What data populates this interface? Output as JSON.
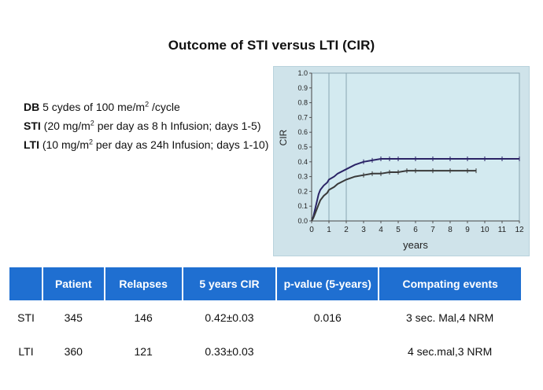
{
  "title": "Outcome of STI versus LTI (CIR)",
  "description": {
    "db": {
      "label": "DB",
      "pre": " 5 cydes of 100 me/m",
      "sup": "2",
      "post": " /cycle"
    },
    "sti": {
      "label": "STI",
      "pre": " (20 mg/m",
      "sup": "2",
      "post": " per day as 8 h Infusion; days 1-5)"
    },
    "lti": {
      "label": "LTI",
      "pre": " (10 mg/m",
      "sup": "2",
      "post": " per day as 24h Infusion; days 1-10)"
    }
  },
  "chart_data": {
    "type": "line",
    "title": "",
    "xlabel": "years",
    "ylabel": "CIR",
    "xlim": [
      0,
      12
    ],
    "ylim": [
      0,
      1.0
    ],
    "x_ticks": [
      "0",
      "1",
      "2",
      "3",
      "4",
      "5",
      "6",
      "7",
      "8",
      "9",
      "10",
      "11",
      "12"
    ],
    "y_ticks": [
      "0.0",
      "0.1",
      "0.2",
      "0.3",
      "0.4",
      "0.5",
      "0.6",
      "0.7",
      "0.8",
      "0.9",
      "1.0"
    ],
    "vertical_lines_at": [
      1,
      2
    ],
    "grid": false,
    "series": [
      {
        "color": "#2b2466",
        "x": [
          0,
          0.1,
          0.2,
          0.3,
          0.4,
          0.5,
          0.7,
          0.9,
          1.0,
          1.3,
          1.5,
          2.0,
          2.5,
          3.0,
          3.5,
          4.0,
          4.5,
          5.0,
          6.0,
          7.0,
          8.0,
          9.0,
          10.0,
          11.0,
          12.0
        ],
        "y": [
          0,
          0.03,
          0.08,
          0.13,
          0.18,
          0.21,
          0.24,
          0.26,
          0.28,
          0.3,
          0.32,
          0.35,
          0.38,
          0.4,
          0.41,
          0.42,
          0.42,
          0.42,
          0.42,
          0.42,
          0.42,
          0.42,
          0.42,
          0.42,
          0.42
        ]
      },
      {
        "color": "#3a3a3a",
        "x": [
          0,
          0.1,
          0.2,
          0.3,
          0.4,
          0.5,
          0.7,
          0.9,
          1.0,
          1.3,
          1.5,
          2.0,
          2.5,
          3.0,
          3.5,
          4.0,
          4.5,
          5.0,
          5.5,
          6.0,
          7.0,
          8.0,
          9.0,
          9.5
        ],
        "y": [
          0,
          0.02,
          0.05,
          0.08,
          0.11,
          0.14,
          0.17,
          0.19,
          0.21,
          0.23,
          0.25,
          0.28,
          0.3,
          0.31,
          0.32,
          0.32,
          0.33,
          0.33,
          0.34,
          0.34,
          0.34,
          0.34,
          0.34,
          0.34
        ]
      }
    ]
  },
  "table": {
    "headers": [
      "",
      "Patient",
      "Relapses",
      "5 years CIR",
      "p-value (5-years)",
      "Compating events"
    ],
    "rows": [
      [
        "STI",
        "345",
        "146",
        "0.42±0.03",
        "0.016",
        "3 sec. Mal,4 NRM"
      ],
      [
        "LTI",
        "360",
        "121",
        "0.33±0.03",
        "",
        "4 sec.mal,3 NRM"
      ]
    ],
    "header_color": "#1f6fd1"
  }
}
